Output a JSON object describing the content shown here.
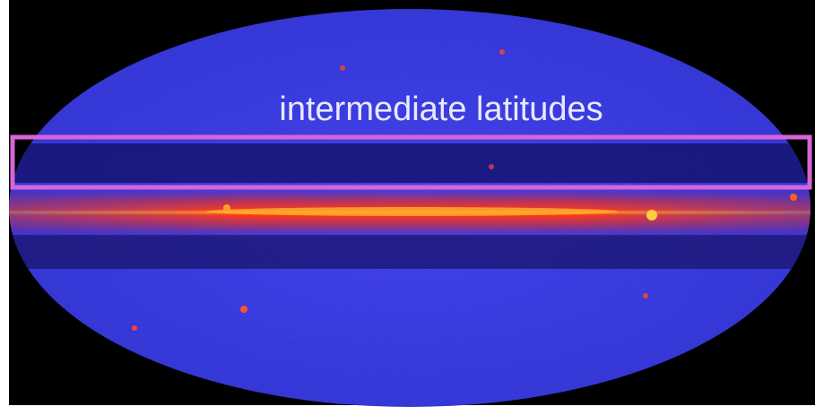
{
  "annotation": {
    "label": "intermediate latitudes"
  }
}
